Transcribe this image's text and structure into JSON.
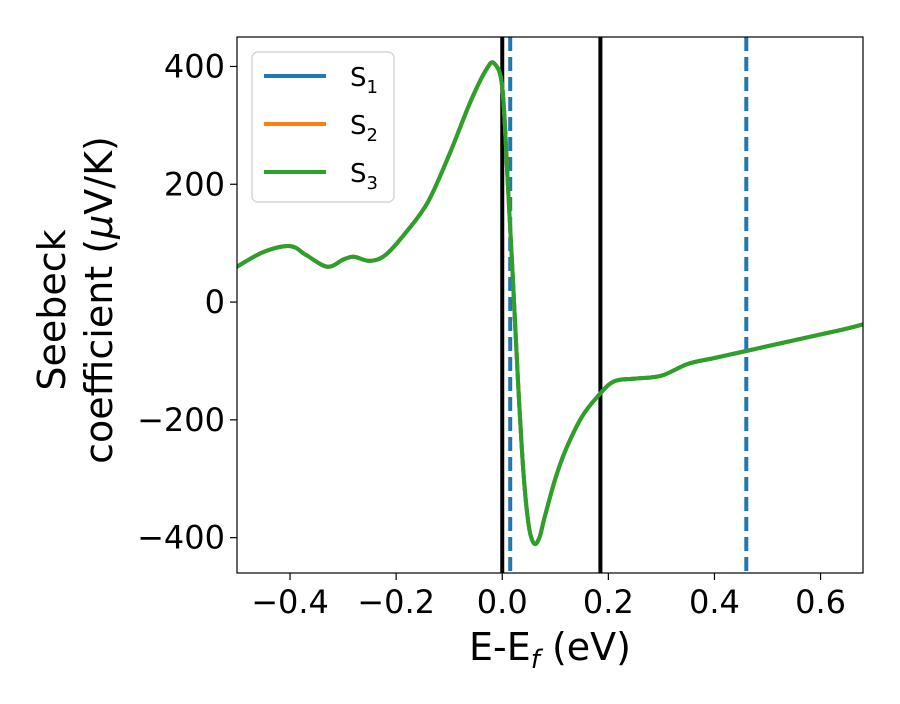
{
  "chart_data": {
    "type": "line",
    "xlabel": "E-E",
    "xlabel_sub": "f",
    "xlabel_unit": " (eV)",
    "ylabel_line1": "Seebeck",
    "ylabel_line2_prefix": "coefficient  (",
    "ylabel_mu": "μ",
    "ylabel_line2_suffix": "V/K)",
    "xlim": [
      -0.5,
      0.68
    ],
    "ylim": [
      -460,
      450
    ],
    "x_ticks": [
      -0.4,
      -0.2,
      0.0,
      0.2,
      0.4,
      0.6
    ],
    "x_tick_labels": [
      "−0.4",
      "−0.2",
      "0.0",
      "0.2",
      "0.4",
      "0.6"
    ],
    "y_ticks": [
      -400,
      -200,
      0,
      200,
      400
    ],
    "y_tick_labels": [
      "−400",
      "−200",
      "0",
      "200",
      "400"
    ],
    "grid": false,
    "legend_position": "upper-left",
    "series": [
      {
        "name": "S",
        "sub": "1",
        "color": "#1f77b4"
      },
      {
        "name": "S",
        "sub": "2",
        "color": "#ff7f0e"
      },
      {
        "name": "S",
        "sub": "3",
        "color": "#2ca02c"
      }
    ],
    "curve": {
      "x": [
        -0.5,
        -0.45,
        -0.4,
        -0.37,
        -0.33,
        -0.3,
        -0.28,
        -0.25,
        -0.22,
        -0.18,
        -0.14,
        -0.1,
        -0.06,
        -0.03,
        -0.015,
        0.0,
        0.01,
        0.02,
        0.03,
        0.04,
        0.05,
        0.06,
        0.07,
        0.08,
        0.1,
        0.12,
        0.15,
        0.18,
        0.21,
        0.25,
        0.3,
        0.35,
        0.4,
        0.45,
        0.5,
        0.55,
        0.6,
        0.65,
        0.68
      ],
      "y": [
        60,
        85,
        95,
        80,
        60,
        72,
        77,
        70,
        80,
        120,
        170,
        250,
        340,
        395,
        405,
        365,
        210,
        40,
        -140,
        -290,
        -380,
        -410,
        -400,
        -365,
        -300,
        -250,
        -195,
        -160,
        -135,
        -130,
        -125,
        -105,
        -95,
        -85,
        -75,
        -65,
        -55,
        -45,
        -38
      ]
    },
    "vlines": [
      {
        "x": 0.0,
        "style": "solid",
        "color": "#000000"
      },
      {
        "x": 0.185,
        "style": "solid",
        "color": "#000000"
      },
      {
        "x": 0.015,
        "style": "dashed",
        "color": "#1f77b4"
      },
      {
        "x": 0.46,
        "style": "dashed",
        "color": "#1f77b4"
      }
    ]
  }
}
